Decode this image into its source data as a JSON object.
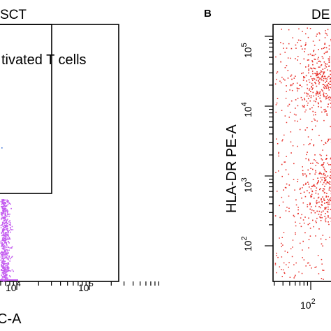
{
  "chart_data": [
    {
      "panel_label": "",
      "title": "SCT",
      "type": "scatter",
      "xlabel": "C-A",
      "ylabel": "",
      "x_scale": "log",
      "x_ticks": [
        "10^4",
        "10^5"
      ],
      "gate_label": "tivated T cells",
      "point_color": "#c45cf0",
      "points_note": "density cluster near x≈10^4 at lower y"
    },
    {
      "panel_label": "B",
      "title": "DE",
      "type": "scatter",
      "xlabel": "",
      "ylabel": "HLA-DR PE-A",
      "x_scale": "log",
      "y_scale": "log",
      "x_ticks": [
        "10^2"
      ],
      "y_ticks": [
        "10^2",
        "10^3",
        "10^4",
        "10^5"
      ],
      "point_color": "#e8302a",
      "clusters": [
        {
          "y_log_center": 4.3,
          "x_log_center": 3.2
        },
        {
          "y_log_center": 3.0,
          "x_log_center": 3.2
        }
      ]
    }
  ]
}
